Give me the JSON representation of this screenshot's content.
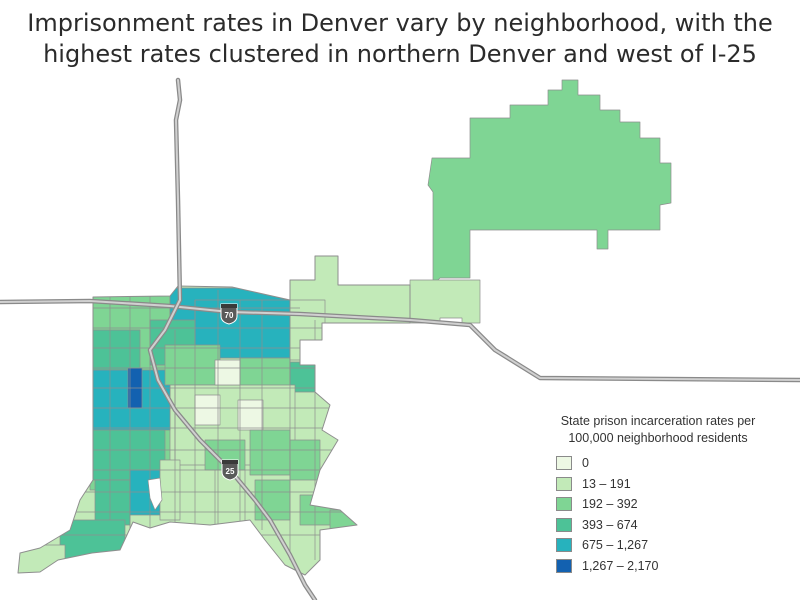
{
  "title": {
    "line1": "Imprisonment rates in Denver vary by neighborhood, with the",
    "line2": "highest rates clustered in northern Denver and west of I-25"
  },
  "highways": [
    {
      "shield": "70",
      "name": "I-70"
    },
    {
      "shield": "25",
      "name": "I-25"
    }
  ],
  "legend": {
    "title_line1": "State prison incarceration rates per",
    "title_line2": "100,000 neighborhood residents",
    "items": [
      {
        "label": "0",
        "color": "#edf8e4"
      },
      {
        "label": "13 – 191",
        "color": "#c2eab8"
      },
      {
        "label": "192 – 392",
        "color": "#7fd594"
      },
      {
        "label": "393 – 674",
        "color": "#4dc297"
      },
      {
        "label": "675 – 1,267",
        "color": "#27b2bd"
      },
      {
        "label": "1,267 – 2,170",
        "color": "#1361b0"
      }
    ]
  }
}
